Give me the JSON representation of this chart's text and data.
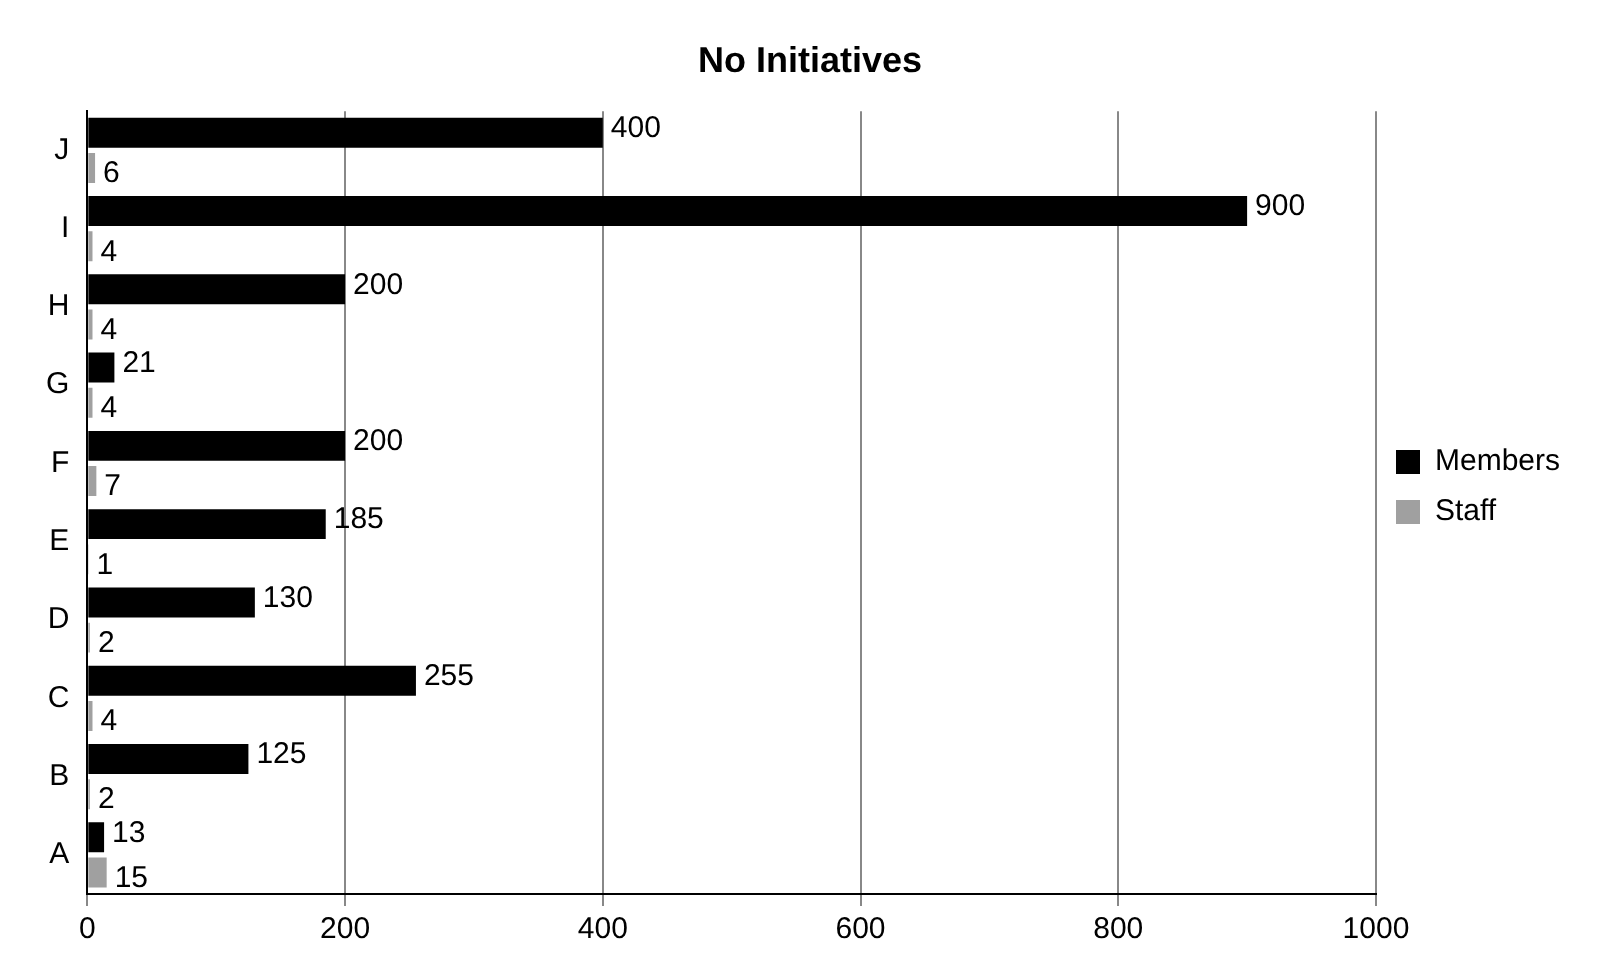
{
  "chart_data": {
    "type": "bar",
    "title": "No Initiatives",
    "orientation": "horizontal",
    "categories": [
      "J",
      "I",
      "H",
      "G",
      "F",
      "E",
      "D",
      "C",
      "B",
      "A"
    ],
    "series": [
      {
        "name": "Members",
        "color": "#000000",
        "values": [
          400,
          900,
          200,
          21,
          200,
          185,
          130,
          255,
          125,
          13
        ]
      },
      {
        "name": "Staff",
        "color": "#a0a0a0",
        "values": [
          6,
          4,
          4,
          4,
          7,
          1,
          2,
          4,
          2,
          15
        ]
      }
    ],
    "xlim": [
      0,
      1000
    ],
    "xticks": [
      0,
      200,
      400,
      600,
      800,
      1000
    ],
    "grid": "x",
    "legend": "right",
    "data_labels": true
  }
}
